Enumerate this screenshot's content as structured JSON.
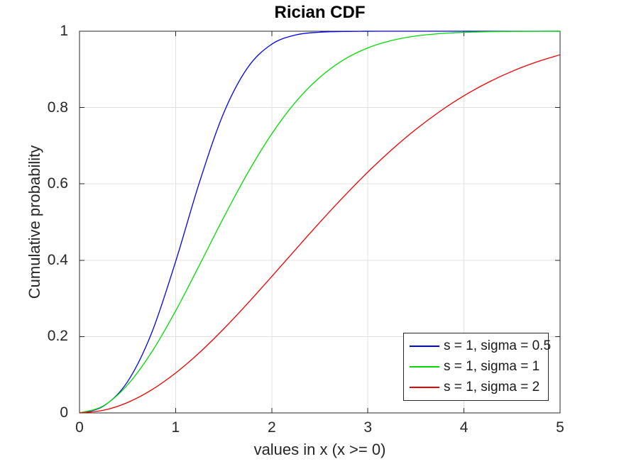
{
  "chart_data": {
    "type": "line",
    "title": "Rician CDF",
    "xlabel": "values in x (x >= 0)",
    "ylabel": "Cumulative probability",
    "xlim": [
      0,
      5
    ],
    "ylim": [
      0,
      1
    ],
    "x_ticks": [
      0,
      1,
      2,
      3,
      4,
      5
    ],
    "x_tick_labels": [
      "0",
      "1",
      "2",
      "3",
      "4",
      "5"
    ],
    "y_ticks": [
      0,
      0.2,
      0.4,
      0.6,
      0.8,
      1
    ],
    "y_tick_labels": [
      "0",
      "0.2",
      "0.4",
      "0.6",
      "0.8",
      "1"
    ],
    "grid": true,
    "legend_position": "lower right",
    "x": [
      0,
      0.25,
      0.5,
      0.75,
      1,
      1.25,
      1.5,
      1.75,
      2,
      2.25,
      2.5,
      2.75,
      3,
      3.25,
      3.5,
      3.75,
      4,
      4.25,
      4.5,
      4.75,
      5
    ],
    "series": [
      {
        "name": "s = 1, sigma = 0.5",
        "s": 1,
        "sigma": 0.5,
        "color": "#0000ee",
        "values": [
          0,
          0.0179,
          0.0819,
          0.2092,
          0.3965,
          0.6059,
          0.7856,
          0.9047,
          0.9659,
          0.9902,
          0.9974,
          0.9994,
          0.9999,
          1,
          1,
          1,
          1,
          1,
          1,
          1,
          1
        ]
      },
      {
        "name": "s = 1, sigma = 1",
        "s": 1,
        "sigma": 1,
        "color": "#00dc00",
        "values": [
          0,
          0.0188,
          0.0735,
          0.1589,
          0.2671,
          0.3883,
          0.5119,
          0.6286,
          0.731,
          0.8149,
          0.8791,
          0.9253,
          0.9563,
          0.9758,
          0.9874,
          0.9938,
          0.9971,
          0.9987,
          0.9995,
          0.9998,
          0.9999
        ]
      },
      {
        "name": "s = 1, sigma = 2",
        "s": 1,
        "sigma": 2,
        "color": "#ee0000",
        "values": [
          0,
          0.0069,
          0.0272,
          0.0602,
          0.1045,
          0.1584,
          0.22,
          0.287,
          0.3573,
          0.4286,
          0.4991,
          0.567,
          0.631,
          0.6898,
          0.743,
          0.79,
          0.8309,
          0.8657,
          0.8949,
          0.9189,
          0.9383
        ]
      }
    ],
    "colors": {
      "axis": "#262626",
      "grid": "#e0e0e0",
      "background": "#ffffff"
    }
  }
}
